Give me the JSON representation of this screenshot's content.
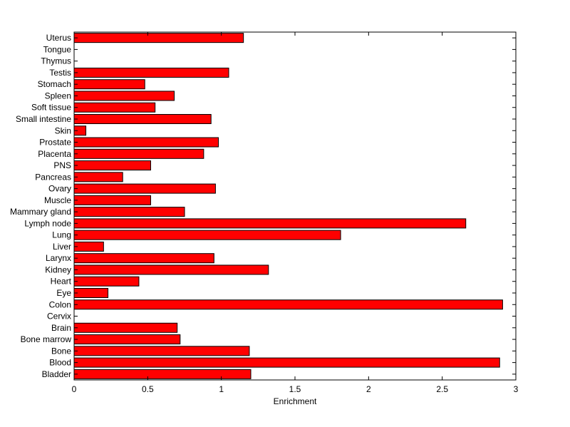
{
  "chart_data": {
    "type": "bar",
    "orientation": "horizontal",
    "categories": [
      "Uterus",
      "Tongue",
      "Thymus",
      "Testis",
      "Stomach",
      "Spleen",
      "Soft tissue",
      "Small intestine",
      "Skin",
      "Prostate",
      "Placenta",
      "PNS",
      "Pancreas",
      "Ovary",
      "Muscle",
      "Mammary gland",
      "Lymph node",
      "Lung",
      "Liver",
      "Larynx",
      "Kidney",
      "Heart",
      "Eye",
      "Colon",
      "Cervix",
      "Brain",
      "Bone marrow",
      "Bone",
      "Blood",
      "Bladder"
    ],
    "values": [
      1.15,
      0,
      0,
      1.05,
      0.48,
      0.68,
      0.55,
      0.93,
      0.08,
      0.98,
      0.88,
      0.52,
      0.33,
      0.96,
      0.52,
      0.75,
      2.66,
      1.81,
      0.2,
      0.95,
      1.32,
      0.44,
      0.23,
      2.91,
      0,
      0.7,
      0.72,
      1.19,
      2.89,
      1.2
    ],
    "xlabel": "Enrichment",
    "ylabel": "",
    "title": "",
    "xlim": [
      0,
      3
    ],
    "xticks": [
      0,
      0.5,
      1,
      1.5,
      2,
      2.5,
      3
    ],
    "xtick_labels": [
      "0",
      "0.5",
      "1",
      "1.5",
      "2",
      "2.5",
      "3"
    ],
    "grid": false,
    "colors": {
      "bar_fill": "#ff0000",
      "bar_stroke": "#000000",
      "axis": "#000000"
    }
  }
}
